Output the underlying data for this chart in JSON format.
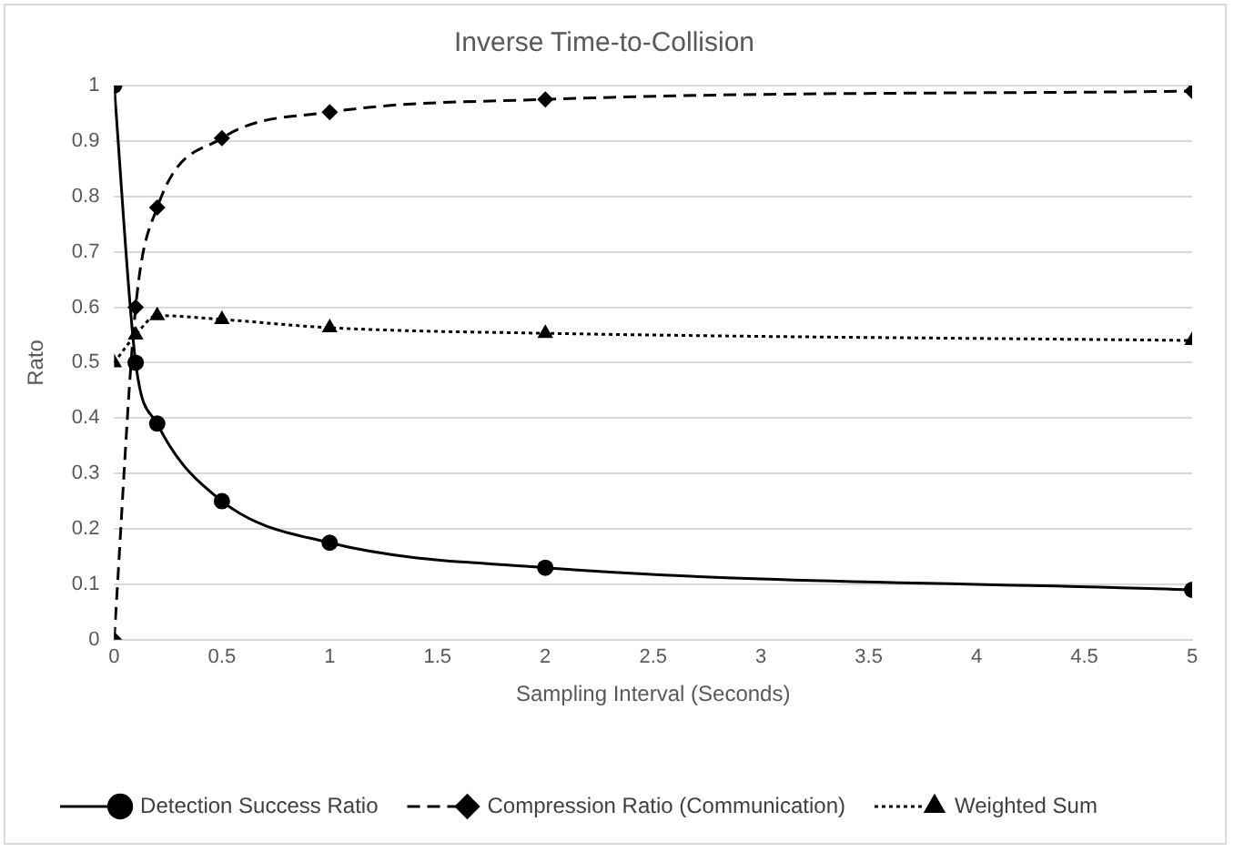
{
  "chart_data": {
    "type": "line",
    "title": "Inverse Time-to-Collision",
    "xlabel": "Sampling Interval (Seconds)",
    "ylabel": "Rato",
    "x": [
      0,
      0.1,
      0.2,
      0.5,
      1,
      2,
      5
    ],
    "xlim": [
      0,
      5
    ],
    "xticks": [
      0,
      0.5,
      1,
      1.5,
      2,
      2.5,
      3,
      3.5,
      4,
      4.5,
      5
    ],
    "ylim": [
      0,
      1
    ],
    "yticks": [
      0,
      0.1,
      0.2,
      0.3,
      0.4,
      0.5,
      0.6,
      0.7,
      0.8,
      0.9,
      1
    ],
    "grid": "y",
    "legend": "bottom",
    "series": [
      {
        "name": "Detection Success Ratio",
        "color": "#000000",
        "marker": "circle",
        "line_style": "solid",
        "values": [
          1,
          0.5,
          0.39,
          0.25,
          0.175,
          0.13,
          0.09
        ]
      },
      {
        "name": "Compression Ratio (Communication)",
        "color": "#000000",
        "marker": "diamond",
        "line_style": "dashed",
        "values": [
          0,
          0.6,
          0.78,
          0.905,
          0.952,
          0.975,
          0.99
        ]
      },
      {
        "name": "Weighted Sum",
        "color": "#000000",
        "marker": "triangle",
        "line_style": "dotted",
        "values": [
          0.5,
          0.55,
          0.585,
          0.578,
          0.563,
          0.553,
          0.54
        ]
      }
    ]
  }
}
